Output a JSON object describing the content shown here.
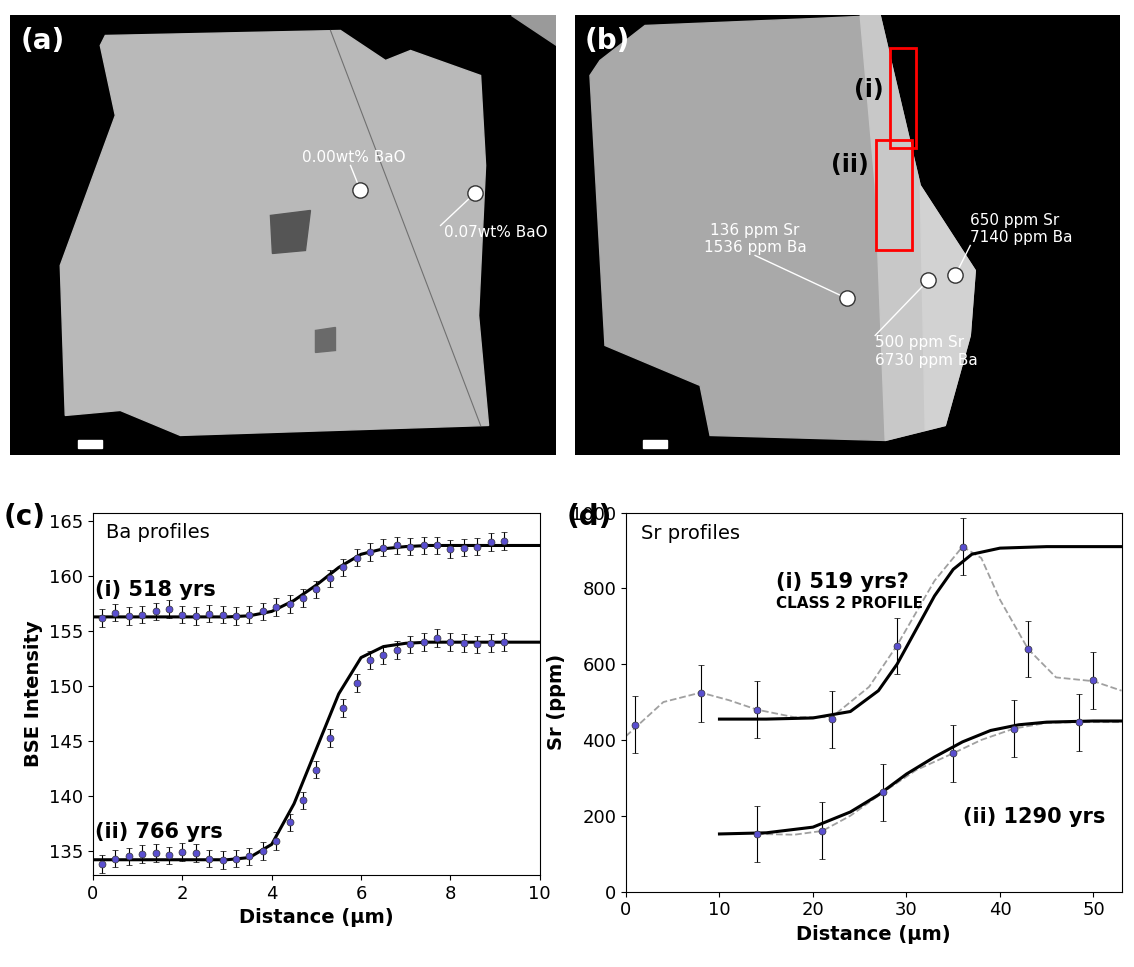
{
  "images": [
    {
      "label": "(a)",
      "annotations": [
        "0.00wt% BaO",
        "0.07wt% BaO"
      ]
    },
    {
      "label": "(b)",
      "regions": [
        "(i)",
        "(ii)"
      ],
      "annotations": [
        "136 ppm Sr\n1536 ppm Ba",
        "500 ppm Sr\n6730 ppm Ba",
        "650 ppm Sr\n7140 ppm Ba"
      ]
    }
  ],
  "chart_data": [
    {
      "panel": "(c)",
      "type": "scatter",
      "title": "Ba profiles",
      "xlabel": "Distance (µm)",
      "ylabel": "BSE Intensity",
      "xlim": [
        0,
        10
      ],
      "xticks": [
        0,
        2,
        4,
        6,
        8,
        10
      ],
      "ylim": [
        132.8,
        165.8
      ],
      "yticks": [
        135,
        140,
        145,
        150,
        155,
        160,
        165
      ],
      "series": [
        {
          "name": "(i) 518 yrs",
          "color": "#5a4fcf",
          "marker": "o",
          "error": 0.8,
          "x": [
            0.2,
            0.5,
            0.8,
            1.1,
            1.4,
            1.7,
            2.0,
            2.3,
            2.6,
            2.9,
            3.2,
            3.5,
            3.8,
            4.1,
            4.4,
            4.7,
            5.0,
            5.3,
            5.6,
            5.9,
            6.2,
            6.5,
            6.8,
            7.1,
            7.4,
            7.7,
            8.0,
            8.3,
            8.6,
            8.9,
            9.2
          ],
          "values": [
            156.2,
            156.7,
            156.4,
            156.5,
            156.8,
            157.0,
            156.5,
            156.4,
            156.6,
            156.5,
            156.4,
            156.5,
            156.8,
            157.2,
            157.5,
            158.0,
            158.8,
            159.8,
            160.8,
            161.7,
            162.2,
            162.6,
            162.8,
            162.7,
            162.8,
            162.8,
            162.5,
            162.6,
            162.7,
            163.1,
            163.2
          ],
          "fit": {
            "color": "#000000",
            "line_style": "solid",
            "x": [
              0,
              0.5,
              1,
              1.5,
              2,
              2.5,
              3,
              3.5,
              4,
              4.5,
              5,
              5.5,
              6,
              6.5,
              7,
              7.5,
              8,
              8.5,
              9,
              9.5,
              10
            ],
            "values": [
              156.3,
              156.3,
              156.3,
              156.3,
              156.3,
              156.3,
              156.3,
              156.4,
              156.8,
              157.8,
              159.2,
              160.8,
              162.0,
              162.5,
              162.7,
              162.8,
              162.8,
              162.8,
              162.8,
              162.8,
              162.8
            ]
          }
        },
        {
          "name": "(ii) 766 yrs",
          "color": "#5a4fcf",
          "marker": "o",
          "error": 0.8,
          "x": [
            0.2,
            0.5,
            0.8,
            1.1,
            1.4,
            1.7,
            2.0,
            2.3,
            2.6,
            2.9,
            3.2,
            3.5,
            3.8,
            4.1,
            4.4,
            4.7,
            5.0,
            5.3,
            5.6,
            5.9,
            6.2,
            6.5,
            6.8,
            7.1,
            7.4,
            7.7,
            8.0,
            8.3,
            8.6,
            8.9,
            9.2
          ],
          "values": [
            133.8,
            134.3,
            134.5,
            134.7,
            134.8,
            134.6,
            134.9,
            134.8,
            134.3,
            134.2,
            134.3,
            134.5,
            135.0,
            135.9,
            137.6,
            139.6,
            142.4,
            145.3,
            148.0,
            150.3,
            152.4,
            152.8,
            153.3,
            153.8,
            154.0,
            154.4,
            154.0,
            153.9,
            153.8,
            153.9,
            154.0
          ],
          "fit": {
            "color": "#000000",
            "line_style": "solid",
            "x": [
              0,
              0.5,
              1,
              1.5,
              2,
              2.5,
              3,
              3.5,
              4,
              4.5,
              5,
              5.5,
              6,
              6.5,
              7,
              7.5,
              8,
              8.5,
              9,
              9.5,
              10
            ],
            "values": [
              134.2,
              134.2,
              134.2,
              134.2,
              134.2,
              134.2,
              134.2,
              134.4,
              135.6,
              139.3,
              144.3,
              149.3,
              152.6,
              153.6,
              153.9,
              154.0,
              154.0,
              154.0,
              154.0,
              154.0,
              154.0
            ]
          }
        }
      ]
    },
    {
      "panel": "(d)",
      "type": "scatter",
      "title": "Sr profiles",
      "xlabel": "Distance (µm)",
      "ylabel": "Sr (ppm)",
      "xlim": [
        0,
        53
      ],
      "xticks": [
        0,
        10,
        20,
        30,
        40,
        50
      ],
      "ylim": [
        0,
        1000
      ],
      "yticks": [
        0,
        200,
        400,
        600,
        800,
        1000
      ],
      "series": [
        {
          "name": "(i) 519 yrs?",
          "annotations": [
            "CLASS 2 PROFILE"
          ],
          "color": "#5a4fcf",
          "marker": "o",
          "error": 75,
          "x": [
            1,
            8,
            14,
            22,
            29,
            36,
            43,
            50
          ],
          "values": [
            440,
            523,
            480,
            455,
            648,
            910,
            640,
            557
          ],
          "fit": {
            "color": "#000000",
            "line_style": "solid",
            "x": [
              10,
              15,
              20,
              24,
              27,
              29,
              31,
              33,
              35,
              37,
              40,
              45,
              53
            ],
            "values": [
              455,
              455,
              458,
              475,
              530,
              600,
              690,
              780,
              850,
              890,
              906,
              910,
              910
            ]
          },
          "guide": {
            "color": "#a0a0a0",
            "line_style": "dashed",
            "x": [
              0,
              4,
              8,
              11,
              14,
              18,
              22,
              26,
              29,
              33,
              36,
              38,
              40,
              43,
              46,
              50,
              53
            ],
            "values": [
              410,
              500,
              525,
              505,
              480,
              460,
              460,
              540,
              650,
              820,
              910,
              880,
              770,
              640,
              565,
              555,
              530
            ]
          }
        },
        {
          "name": "(ii) 1290 yrs",
          "color": "#5a4fcf",
          "marker": "o",
          "error": 75,
          "x": [
            14,
            21,
            27.5,
            35,
            41.5,
            48.5
          ],
          "values": [
            152,
            160,
            262,
            365,
            430,
            447
          ],
          "fit": {
            "color": "#000000",
            "line_style": "solid",
            "x": [
              10,
              15,
              20,
              24,
              27,
              30,
              33,
              36,
              39,
              42,
              45,
              50,
              53
            ],
            "values": [
              152,
              155,
              170,
              210,
              255,
              310,
              355,
              395,
              425,
              440,
              447,
              450,
              450
            ]
          },
          "guide": {
            "color": "#a0a0a0",
            "line_style": "dashed",
            "x": [
              14,
              18,
              21,
              24,
              27.5,
              31,
              35,
              38,
              41.5,
              45,
              48.5,
              53
            ],
            "values": [
              152,
              150,
              160,
              200,
              262,
              320,
              365,
              400,
              430,
              445,
              447,
              447
            ]
          }
        }
      ]
    }
  ]
}
